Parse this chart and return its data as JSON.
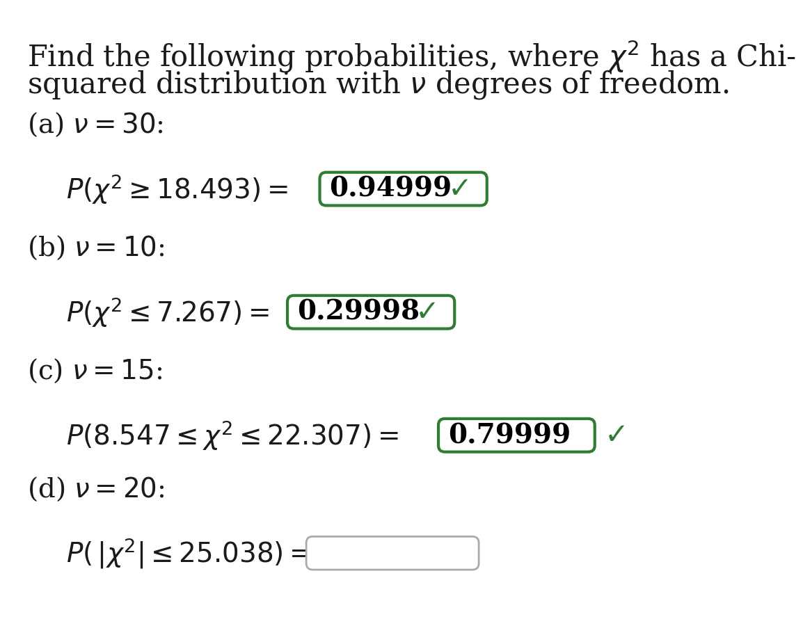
{
  "bg_color": "#ffffff",
  "text_color": "#1a1a1a",
  "answer_text_color": "#000000",
  "box_color_answered": "#2e7d32",
  "box_color_empty": "#aaaaaa",
  "check_color": "#2e7d32",
  "font_size_title": 30,
  "font_size_label": 28,
  "font_size_eq": 28,
  "font_size_answer": 28,
  "font_size_check": 30,
  "title_line1": "Find the following probabilities, where $\\chi^2$ has a Chi-",
  "title_line2": "squared distribution with $\\nu$ degrees of freedom.",
  "parts": [
    {
      "label": "(a) $\\nu = 30$:",
      "equation": "$P(\\chi^2 \\geq 18.493) =$",
      "answer": "0.94999",
      "has_answer": true,
      "has_check": true,
      "check_inside_box": true
    },
    {
      "label": "(b) $\\nu = 10$:",
      "equation": "$P(\\chi^2 \\leq 7.267) =$",
      "answer": "0.29998",
      "has_answer": true,
      "has_check": true,
      "check_inside_box": true
    },
    {
      "label": "(c) $\\nu = 15$:",
      "equation": "$P(8.547 \\leq \\chi^2 \\leq 22.307) =$",
      "answer": "0.79999",
      "has_answer": true,
      "has_check": true,
      "check_inside_box": false
    },
    {
      "label": "(d) $\\nu = 20$:",
      "equation": "$P(\\,|\\chi^2| \\leq 25.038) =$",
      "answer": "",
      "has_answer": false,
      "has_check": false,
      "check_inside_box": false
    }
  ]
}
